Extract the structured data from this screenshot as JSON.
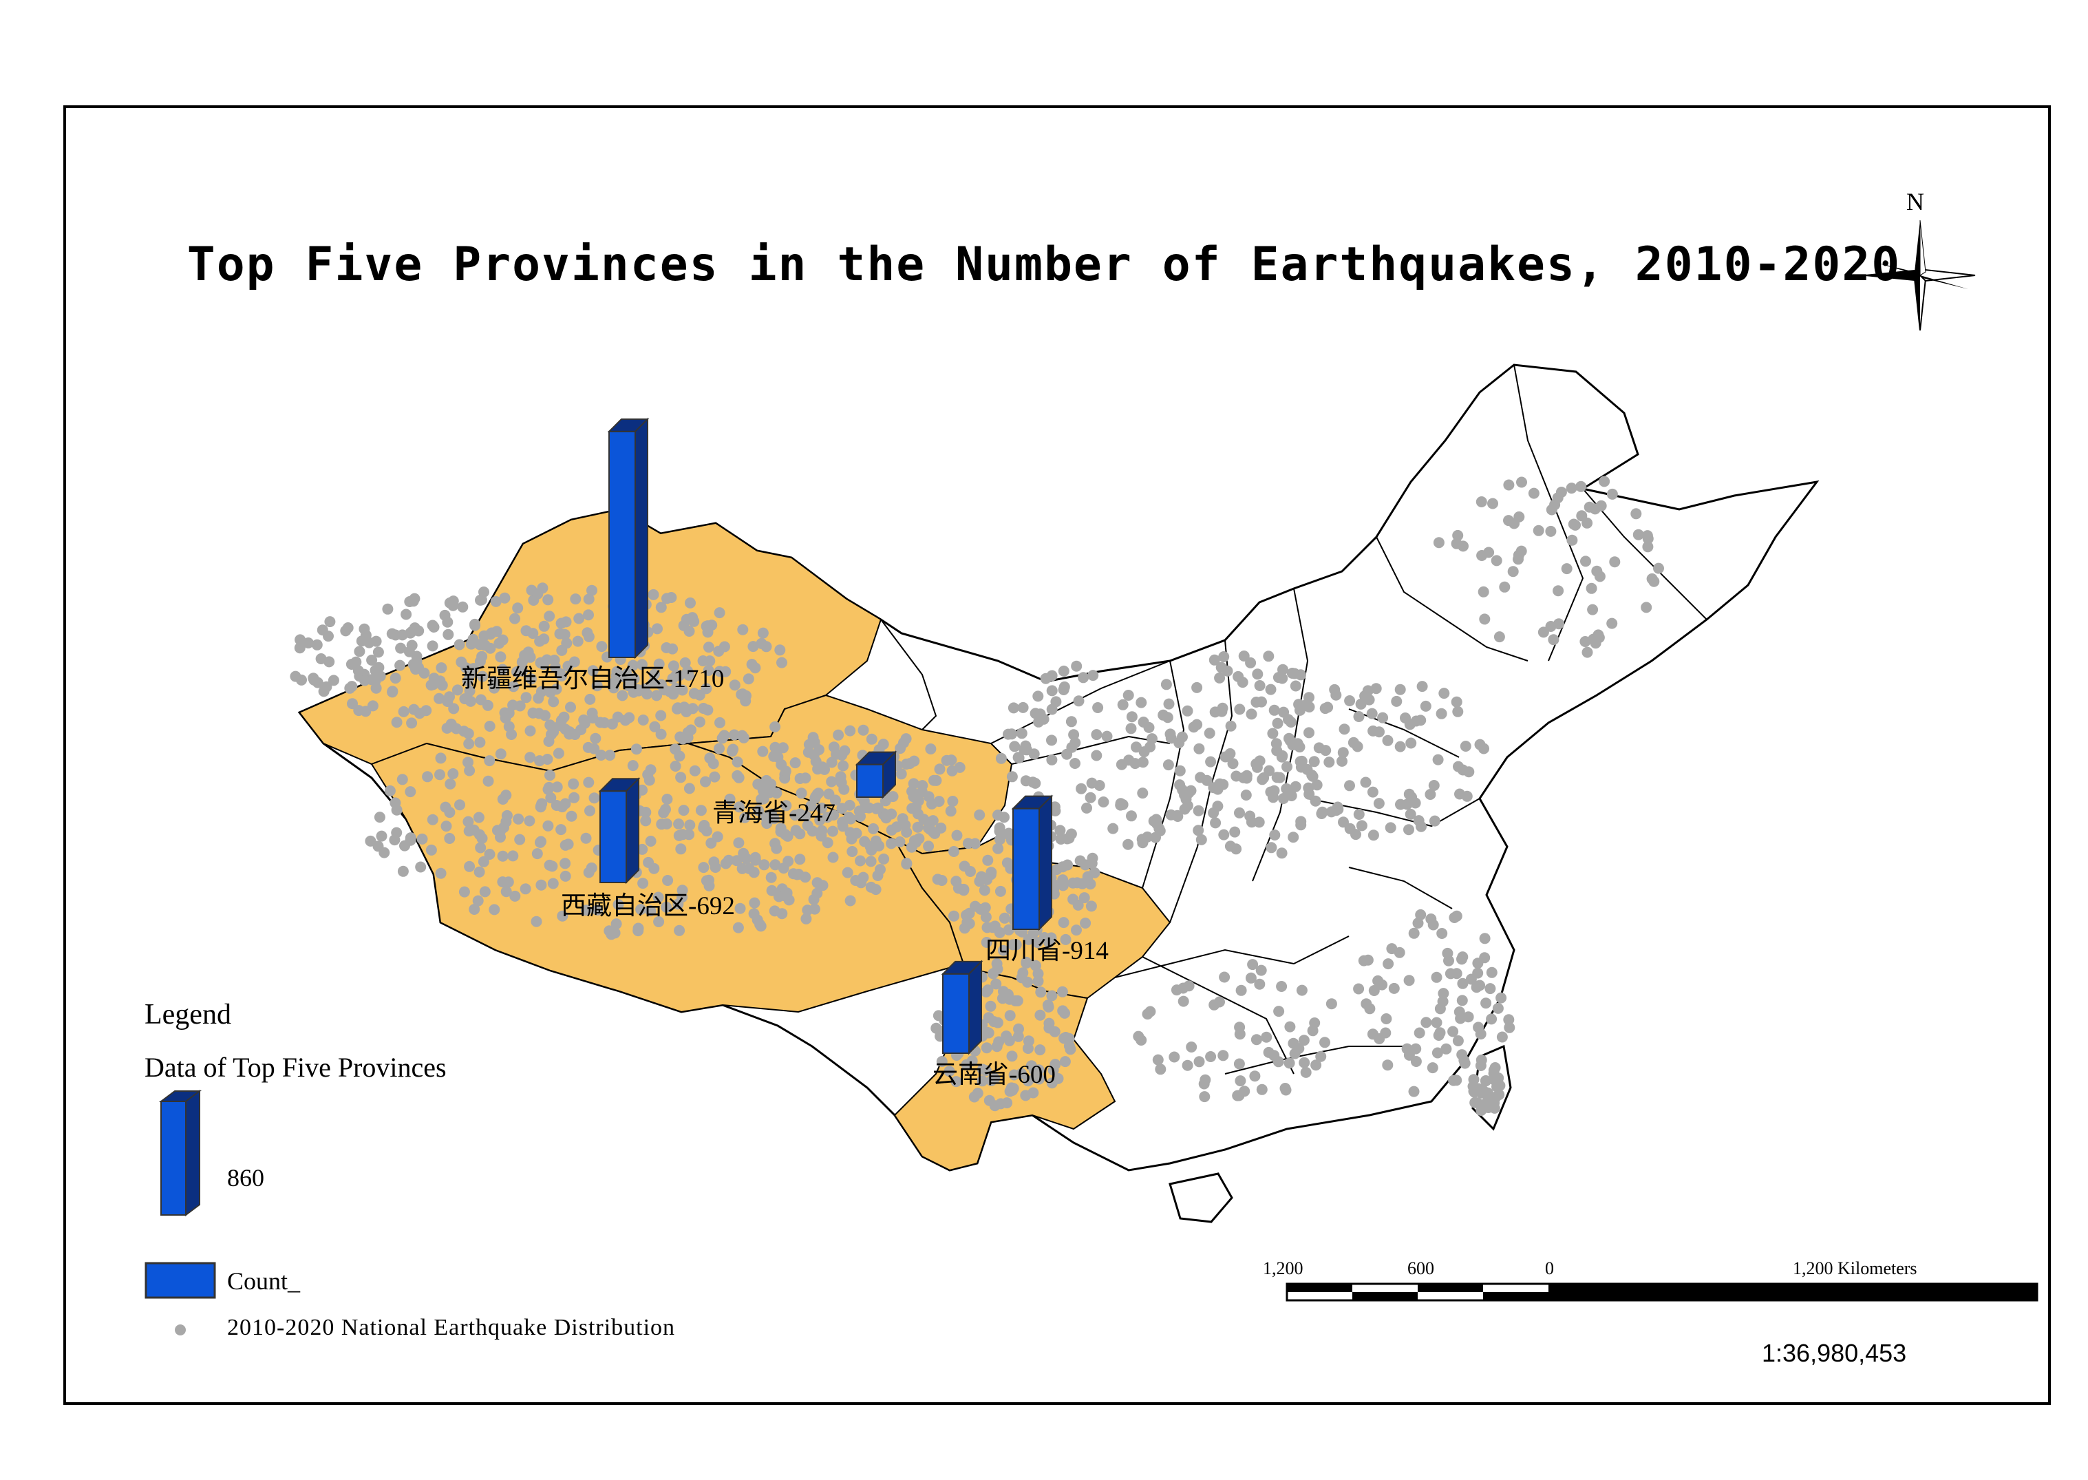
{
  "title": "Top Five Provinces in the Number of Earthquakes, 2010-2020",
  "north_label": "N",
  "legend": {
    "heading": "Legend",
    "layer_title": "Data of Top Five Provinces",
    "bar_reference_value": "860",
    "count_label": "Count_",
    "points_label": "2010-2020 National Earthquake Distribution"
  },
  "scale_bar": {
    "labels": [
      "1,200",
      "600",
      "0",
      "1,200 Kilometers"
    ],
    "ratio": "1:36,980,453"
  },
  "colors": {
    "top_province_fill": "#f7c362",
    "bar_fill": "#0b55d9",
    "bar_dark": "#0b2f80",
    "point": "#a8a8a8",
    "border": "#000000"
  },
  "provinces": [
    {
      "label": "新疆维吾尔自治区-1710",
      "count": 1710
    },
    {
      "label": "四川省-914",
      "count": 914
    },
    {
      "label": "西藏自治区-692",
      "count": 692
    },
    {
      "label": "云南省-600",
      "count": 600
    },
    {
      "label": "青海省-247",
      "count": 247
    }
  ]
}
